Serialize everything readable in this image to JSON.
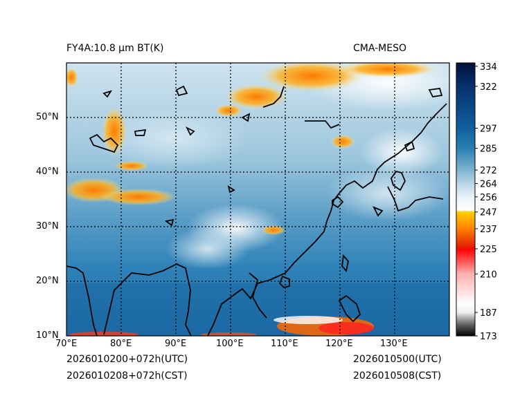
{
  "title_left": "FY4A:10.8 µm BT(K)",
  "title_right": "CMA-MESO",
  "init_utc": "2026010200+072h(UTC)",
  "init_cst": "2026010208+072h(CST)",
  "valid_utc": "2026010500(UTC)",
  "valid_cst": "2026010508(CST)",
  "map": {
    "lon_range": [
      70,
      140
    ],
    "lat_range": [
      10,
      60
    ],
    "lon_ticks": [
      "70°E",
      "80°E",
      "90°E",
      "100°E",
      "110°E",
      "120°E",
      "130°E"
    ],
    "lat_ticks": [
      "10°N",
      "20°N",
      "30°N",
      "40°N",
      "50°N"
    ]
  },
  "colorbar": {
    "range": [
      173,
      336
    ],
    "ticks": [
      "173",
      "187",
      "210",
      "225",
      "237",
      "247",
      "256",
      "264",
      "272",
      "285",
      "297",
      "322",
      "334"
    ],
    "tick_values": [
      173,
      187,
      210,
      225,
      237,
      247,
      256,
      264,
      272,
      285,
      297,
      322,
      334
    ],
    "stops": [
      {
        "v": 173,
        "c": "#000000"
      },
      {
        "v": 180,
        "c": "#666666"
      },
      {
        "v": 187,
        "c": "#eeeeee"
      },
      {
        "v": 192,
        "c": "#ffffff"
      },
      {
        "v": 210,
        "c": "#ffb0b0"
      },
      {
        "v": 222,
        "c": "#ff2020"
      },
      {
        "v": 225,
        "c": "#ff0000"
      },
      {
        "v": 226,
        "c": "#e02000"
      },
      {
        "v": 237,
        "c": "#ff8000"
      },
      {
        "v": 247,
        "c": "#ffd000"
      },
      {
        "v": 248,
        "c": "#ffffff"
      },
      {
        "v": 256,
        "c": "#e8f2f8"
      },
      {
        "v": 264,
        "c": "#b8d6e6"
      },
      {
        "v": 272,
        "c": "#7fb3d0"
      },
      {
        "v": 285,
        "c": "#2a7fb0"
      },
      {
        "v": 297,
        "c": "#1060a0"
      },
      {
        "v": 322,
        "c": "#06306c"
      },
      {
        "v": 336,
        "c": "#02123a"
      }
    ]
  }
}
